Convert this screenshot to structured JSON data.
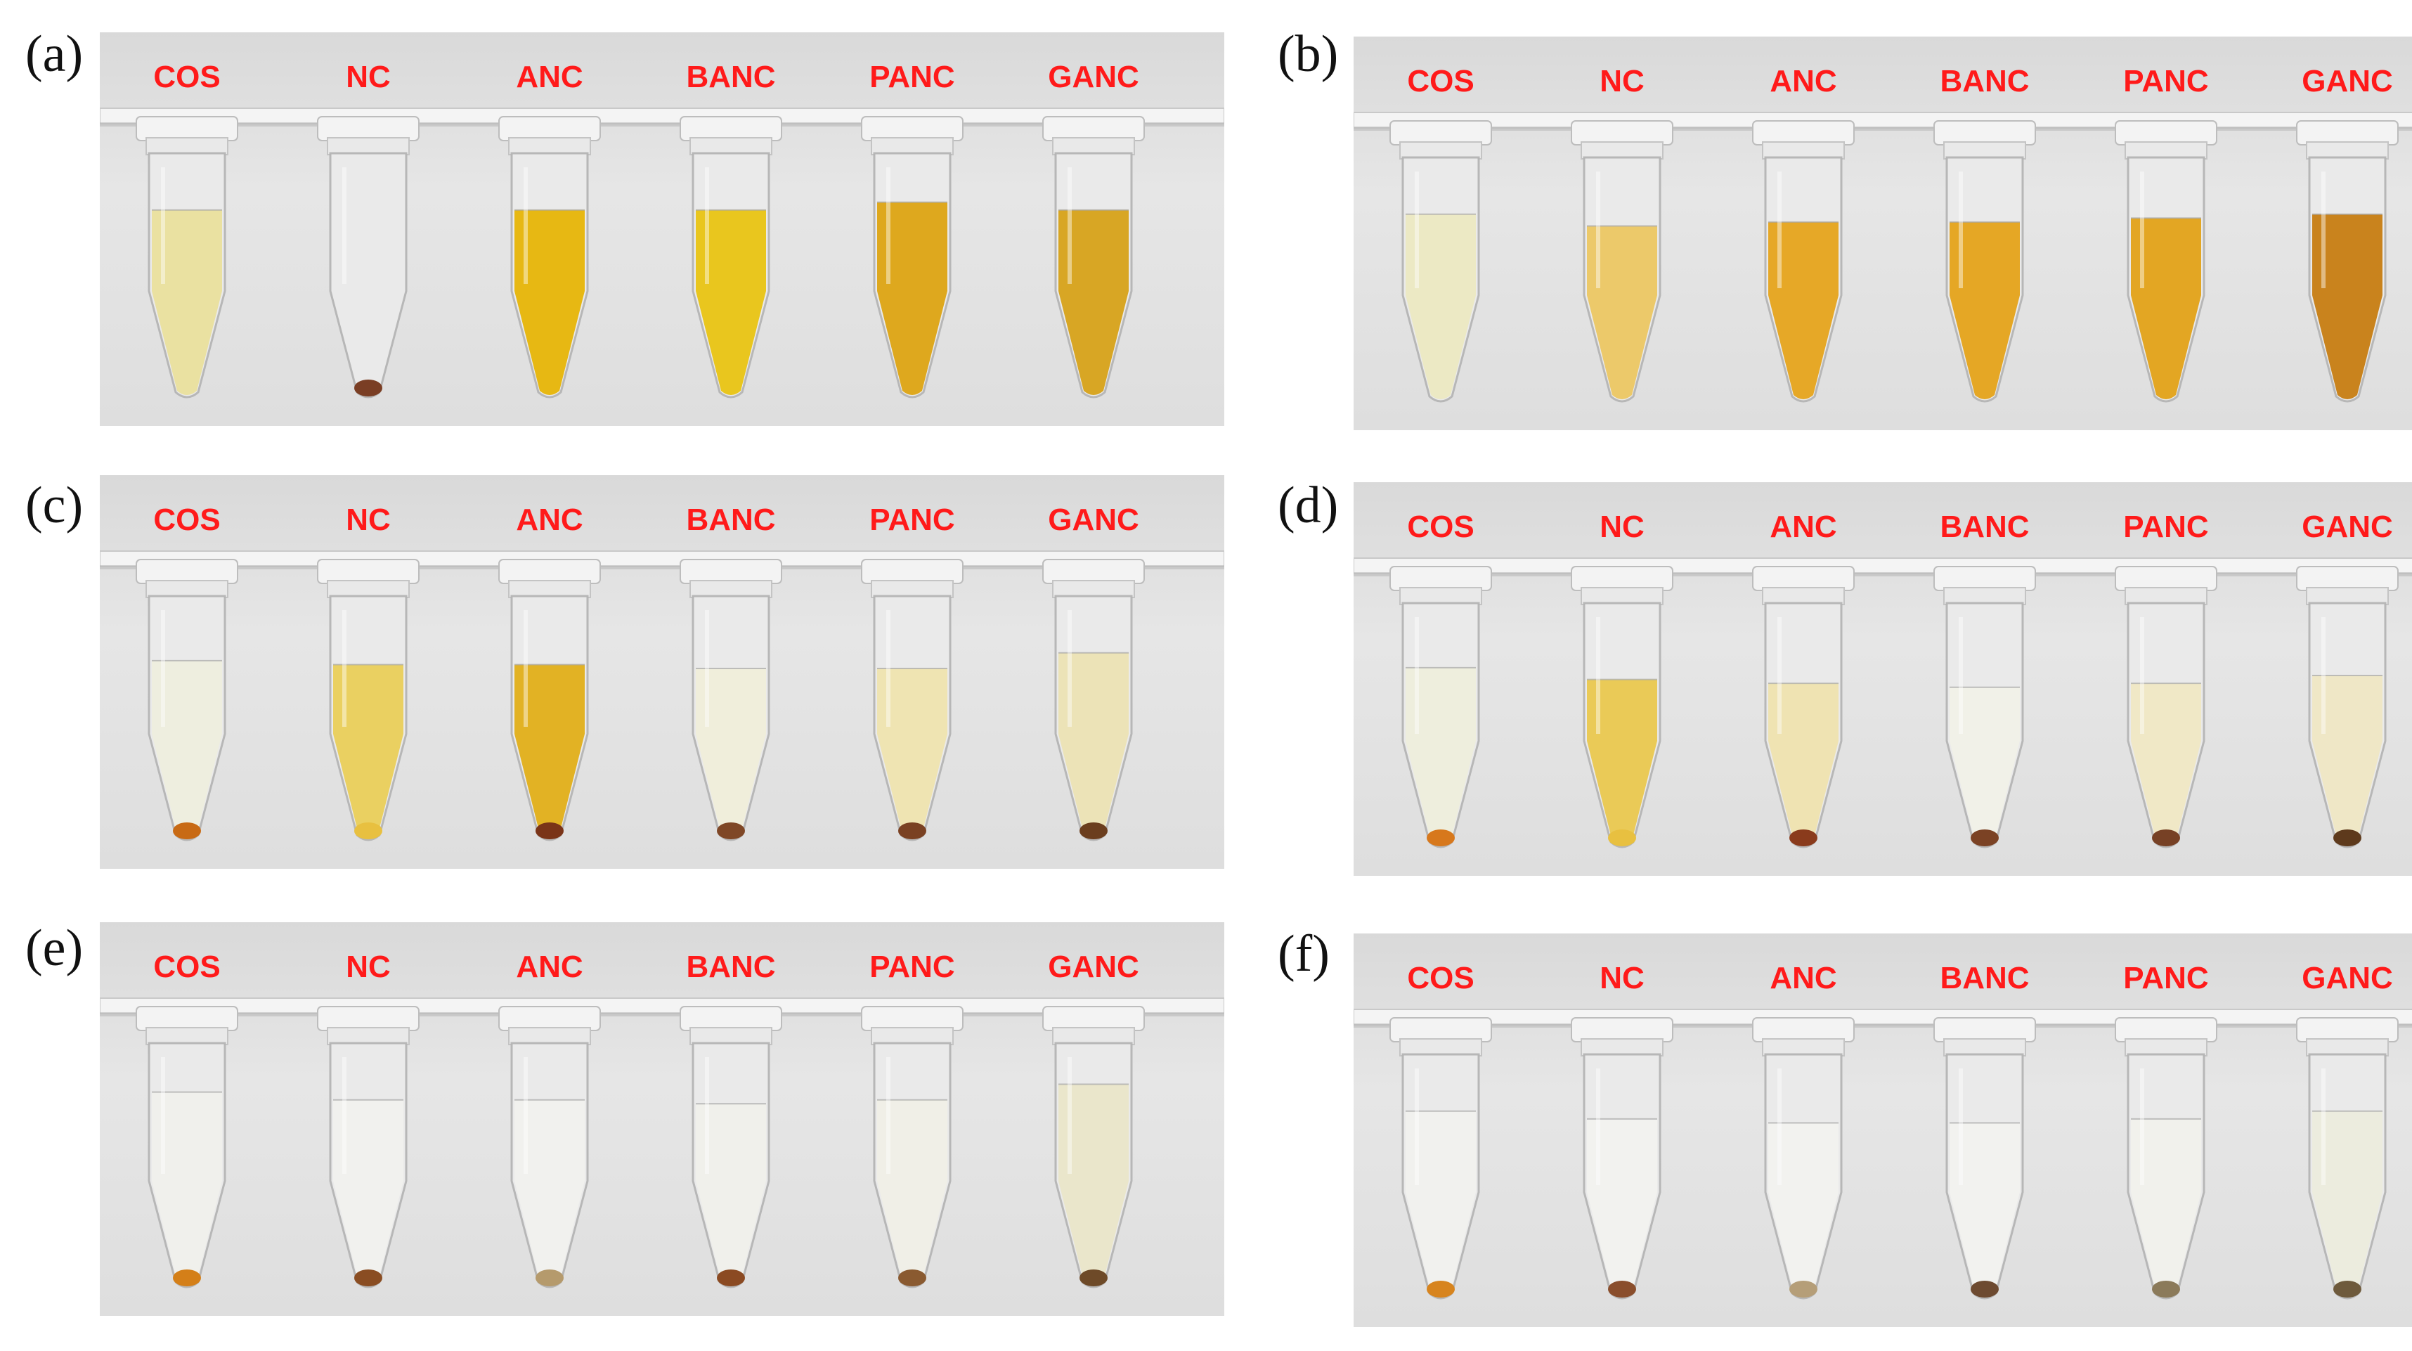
{
  "panels": [
    {
      "letter": "(a)",
      "labels": [
        "COS",
        "NC",
        "ANC",
        "BANC",
        "PANC",
        "GANC"
      ],
      "fill": [
        0.48,
        0.0,
        0.48,
        0.48,
        0.5,
        0.48
      ],
      "liquid": [
        "#e9e09a",
        "#ffffff",
        "#e6b300",
        "#e8c20c",
        "#dca20c",
        "#d69f12"
      ],
      "pellet": [
        "",
        "#7a3e24",
        "",
        "",
        "",
        ""
      ]
    },
    {
      "letter": "(b)",
      "labels": [
        "COS",
        "NC",
        "ANC",
        "BANC",
        "PANC",
        "GANC"
      ],
      "fill": [
        0.48,
        0.45,
        0.46,
        0.46,
        0.47,
        0.48
      ],
      "liquid": [
        "#ece8c0",
        "#ecc65e",
        "#e5a216",
        "#e4a114",
        "#e2a011",
        "#c67a0b"
      ],
      "pellet": [
        "",
        "",
        "",
        "",
        "",
        ""
      ]
    },
    {
      "letter": "(c)",
      "labels": [
        "COS",
        "NC",
        "ANC",
        "BANC",
        "PANC",
        "GANC"
      ],
      "fill": [
        0.46,
        0.45,
        0.45,
        0.44,
        0.44,
        0.48
      ],
      "liquid": [
        "#eeeedd",
        "#e9cd55",
        "#e1ad12",
        "#f0eed9",
        "#efe3ad",
        "#ebe2b2"
      ],
      "pellet": [
        "#c86a14",
        "#e8c040",
        "#7a3418",
        "#7f4726",
        "#7a4122",
        "#6b3e1e"
      ]
    },
    {
      "letter": "(d)",
      "labels": [
        "COS",
        "NC",
        "ANC",
        "BANC",
        "PANC",
        "GANC"
      ],
      "fill": [
        0.46,
        0.43,
        0.42,
        0.41,
        0.42,
        0.44
      ],
      "liquid": [
        "#eeeedb",
        "#e9c74a",
        "#efe2ad",
        "#f1f1e7",
        "#f0e7c2",
        "#efe6c2"
      ],
      "pellet": [
        "#d7781c",
        "#e8c040",
        "#8a3b1c",
        "#7b4224",
        "#774125",
        "#5e3a1c"
      ]
    },
    {
      "letter": "(e)",
      "labels": [
        "COS",
        "NC",
        "ANC",
        "BANC",
        "PANC",
        "GANC"
      ],
      "fill": [
        0.5,
        0.48,
        0.48,
        0.47,
        0.48,
        0.52
      ],
      "liquid": [
        "#f0f0ec",
        "#f1f1ee",
        "#f1f1ee",
        "#f0f0ea",
        "#f0efe6",
        "#e9e5c8"
      ],
      "pellet": [
        "#d47f18",
        "#8a4d22",
        "#b59a6c",
        "#8b4a22",
        "#8a5a30",
        "#6e4a28"
      ]
    },
    {
      "letter": "(f)",
      "labels": [
        "COS",
        "NC",
        "ANC",
        "BANC",
        "PANC",
        "GANC"
      ],
      "fill": [
        0.48,
        0.46,
        0.45,
        0.45,
        0.46,
        0.48
      ],
      "liquid": [
        "#f1f1ee",
        "#f2f2ef",
        "#f2f2ef",
        "#f2f2ef",
        "#f1f1ec",
        "#ecebdc"
      ],
      "pellet": [
        "#d7841e",
        "#8a4e2c",
        "#b59e78",
        "#6d4a30",
        "#8b7a5a",
        "#6e5a3c"
      ]
    }
  ]
}
